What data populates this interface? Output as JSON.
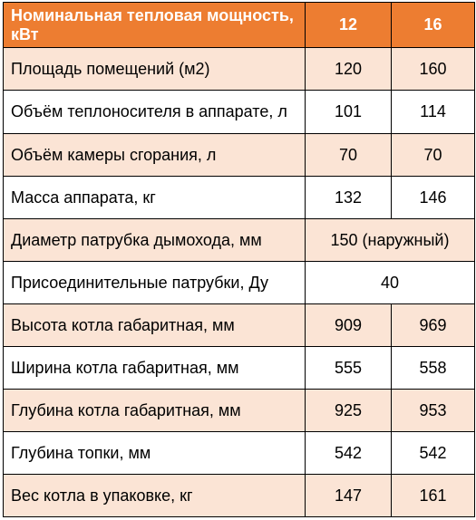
{
  "header": {
    "label": "Номинальная тепловая мощность, кВт",
    "col1": "12",
    "col2": "16"
  },
  "colors": {
    "header_bg": "#ED7D31",
    "header_text": "#ffffff",
    "row_shade": "#FBE4D5",
    "row_plain": "#ffffff"
  },
  "rows": [
    {
      "label": "Площадь помещений (м2)",
      "v1": "120",
      "v2": "160"
    },
    {
      "label": "Объём теплоносителя в аппарате, л",
      "v1": "101",
      "v2": "114"
    },
    {
      "label": "Объём камеры сгорания, л",
      "v1": "70",
      "v2": "70"
    },
    {
      "label": "Масса аппарата, кг",
      "v1": "132",
      "v2": "146"
    },
    {
      "label": "Диаметр патрубка дымохода, мм",
      "merged": "150 (наружный)"
    },
    {
      "label": "Присоединительные патрубки, Ду",
      "merged": "40"
    },
    {
      "label": "Высота котла габаритная, мм",
      "v1": "909",
      "v2": "969"
    },
    {
      "label": "Ширина котла габаритная, мм",
      "v1": "555",
      "v2": "558"
    },
    {
      "label": "Глубина котла габаритная, мм",
      "v1": "925",
      "v2": "953"
    },
    {
      "label": "Глубина топки, мм",
      "v1": "542",
      "v2": "542"
    },
    {
      "label": "Вес котла в упаковке, кг",
      "v1": "147",
      "v2": "161"
    }
  ]
}
